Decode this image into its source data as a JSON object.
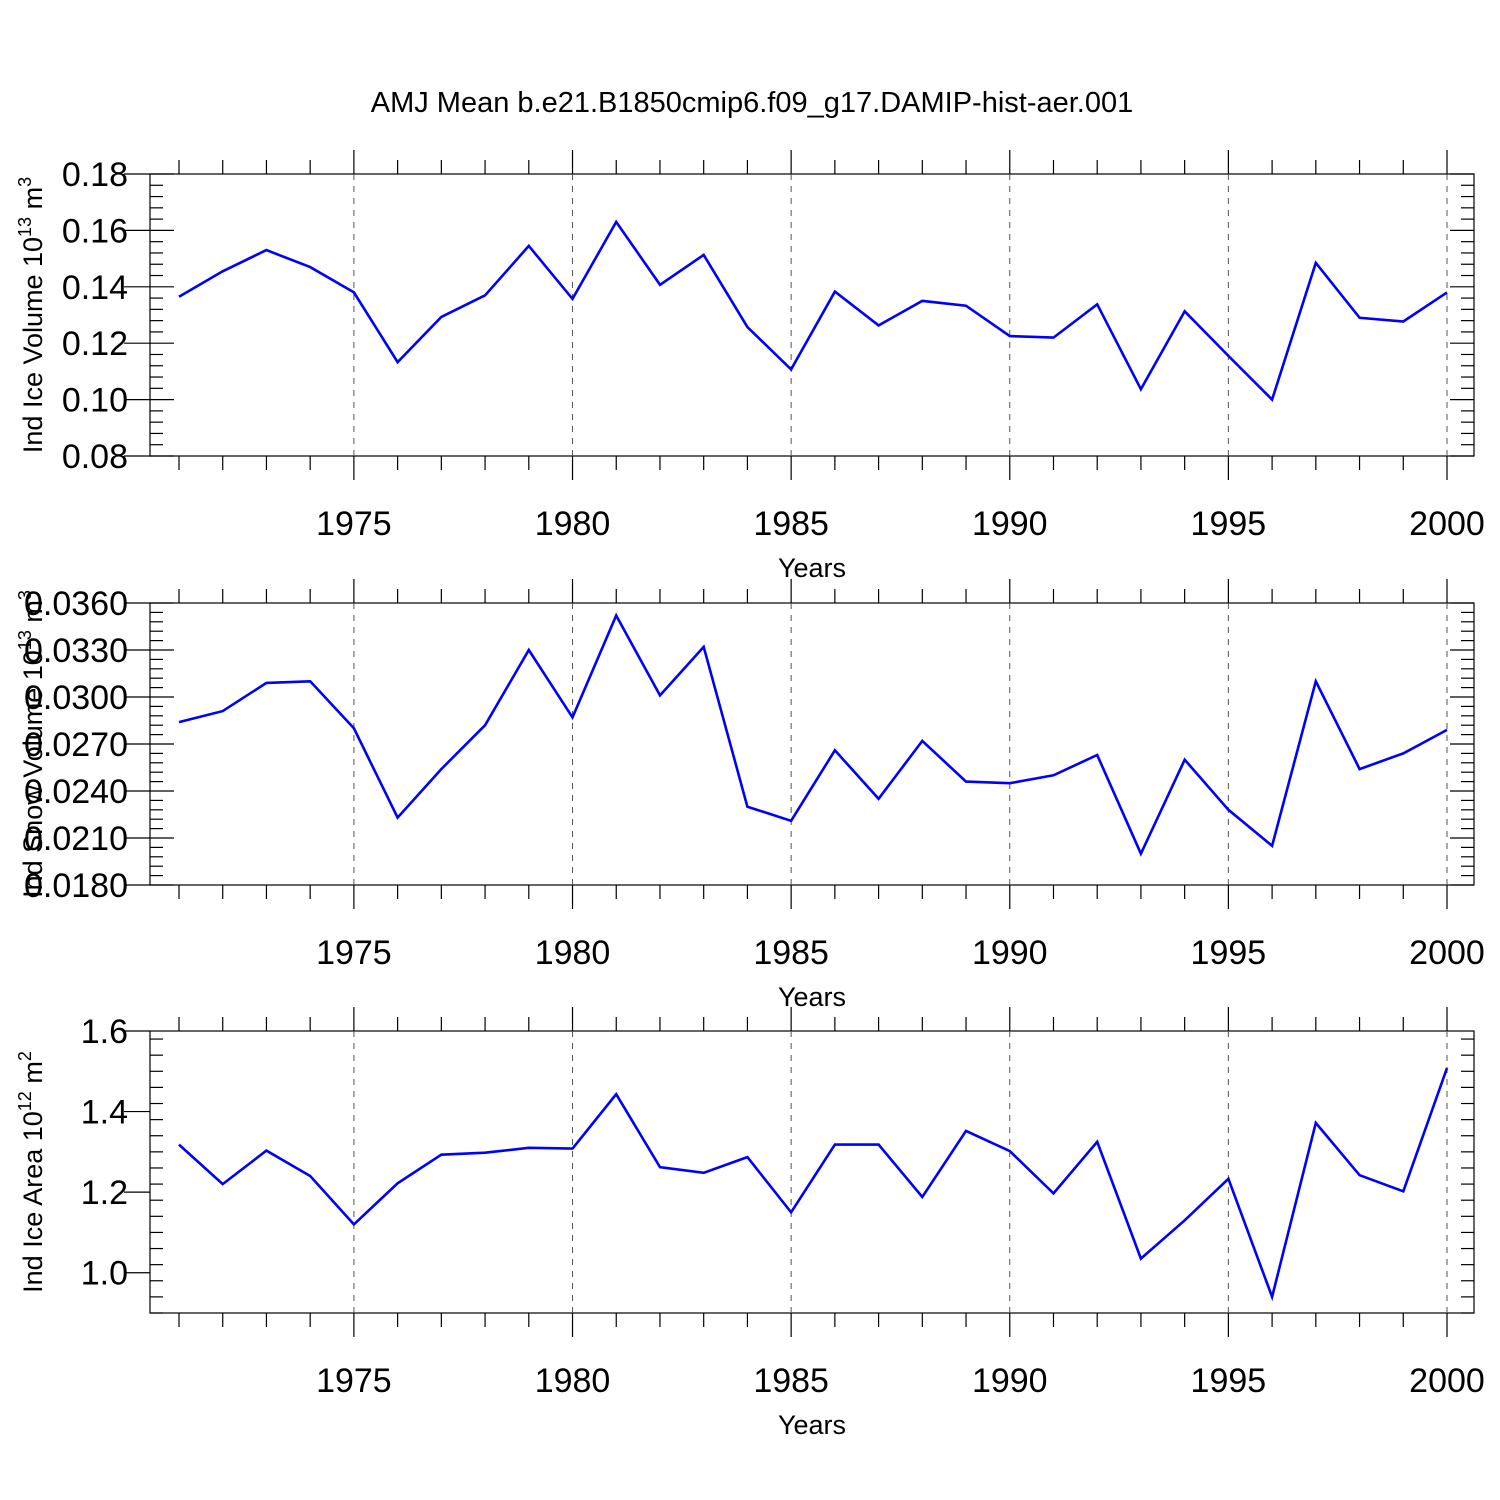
{
  "title": "AMJ Mean b.e21.B1850cmip6.f09_g17.DAMIP-hist-aer.001",
  "line_color": "#0000ff",
  "chart_data": [
    {
      "type": "line",
      "id": "ice-volume",
      "ylabel": "Ind Ice Volume 10",
      "ylabel_exp": "13",
      "ylabel_unit": " m",
      "ylabel_unit_exp": "3",
      "xlabel": "Years",
      "xlim": [
        1971,
        2000
      ],
      "ylim": [
        0.08,
        0.18
      ],
      "yticks": [
        0.08,
        0.1,
        0.12,
        0.14,
        0.16,
        0.18
      ],
      "ytick_labels": [
        "0.08",
        "0.10",
        "0.12",
        "0.14",
        "0.16",
        "0.18"
      ],
      "xticks": [
        1975,
        1980,
        1985,
        1990,
        1995,
        2000
      ],
      "xtick_labels": [
        "1975",
        "1980",
        "1985",
        "1990",
        "1995",
        "2000"
      ],
      "x": [
        1971,
        1972,
        1973,
        1974,
        1975,
        1976,
        1977,
        1978,
        1979,
        1980,
        1981,
        1982,
        1983,
        1984,
        1985,
        1986,
        1987,
        1988,
        1989,
        1990,
        1991,
        1992,
        1993,
        1994,
        1995,
        1996,
        1997,
        1998,
        1999,
        2000
      ],
      "values": [
        0.1365,
        0.1455,
        0.153,
        0.147,
        0.138,
        0.1133,
        0.1293,
        0.137,
        0.1545,
        0.1357,
        0.163,
        0.1407,
        0.1513,
        0.1257,
        0.1107,
        0.1383,
        0.1263,
        0.135,
        0.1333,
        0.1225,
        0.122,
        0.1338,
        0.1037,
        0.1313,
        0.1155,
        0.1,
        0.1485,
        0.129,
        0.1277,
        0.138
      ]
    },
    {
      "type": "line",
      "id": "snow-volume",
      "ylabel": "Ind Snow Volume 10",
      "ylabel_exp": "13",
      "ylabel_unit": " m",
      "ylabel_unit_exp": "3",
      "xlabel": "Years",
      "xlim": [
        1971,
        2000
      ],
      "ylim": [
        0.018,
        0.036
      ],
      "yticks": [
        0.018,
        0.021,
        0.024,
        0.027,
        0.03,
        0.033,
        0.036
      ],
      "ytick_labels": [
        "0.0180",
        "0.0210",
        "0.0240",
        "0.0270",
        "0.0300",
        "0.0330",
        "0.0360"
      ],
      "xticks": [
        1975,
        1980,
        1985,
        1990,
        1995,
        2000
      ],
      "xtick_labels": [
        "1975",
        "1980",
        "1985",
        "1990",
        "1995",
        "2000"
      ],
      "x": [
        1971,
        1972,
        1973,
        1974,
        1975,
        1976,
        1977,
        1978,
        1979,
        1980,
        1981,
        1982,
        1983,
        1984,
        1985,
        1986,
        1987,
        1988,
        1989,
        1990,
        1991,
        1992,
        1993,
        1994,
        1995,
        1996,
        1997,
        1998,
        1999,
        2000
      ],
      "values": [
        0.0284,
        0.0291,
        0.0309,
        0.031,
        0.028,
        0.0223,
        0.0254,
        0.0282,
        0.033,
        0.0287,
        0.0352,
        0.0301,
        0.0332,
        0.023,
        0.0221,
        0.0266,
        0.0235,
        0.0272,
        0.0246,
        0.0245,
        0.025,
        0.0263,
        0.02,
        0.026,
        0.0228,
        0.0205,
        0.031,
        0.0254,
        0.0264,
        0.0279
      ]
    },
    {
      "type": "line",
      "id": "ice-area",
      "ylabel": "Ind Ice Area 10",
      "ylabel_exp": "12",
      "ylabel_unit": " m",
      "ylabel_unit_exp": "2",
      "xlabel": "Years",
      "xlim": [
        1971,
        2000
      ],
      "ylim": [
        0.9,
        1.6
      ],
      "yticks": [
        1.0,
        1.2,
        1.4,
        1.6
      ],
      "ytick_labels": [
        "1.0",
        "1.2",
        "1.4",
        "1.6"
      ],
      "xticks": [
        1975,
        1980,
        1985,
        1990,
        1995,
        2000
      ],
      "xtick_labels": [
        "1975",
        "1980",
        "1985",
        "1990",
        "1995",
        "2000"
      ],
      "x": [
        1971,
        1972,
        1973,
        1974,
        1975,
        1976,
        1977,
        1978,
        1979,
        1980,
        1981,
        1982,
        1983,
        1984,
        1985,
        1986,
        1987,
        1988,
        1989,
        1990,
        1991,
        1992,
        1993,
        1994,
        1995,
        1996,
        1997,
        1998,
        1999,
        2000
      ],
      "values": [
        1.318,
        1.22,
        1.303,
        1.24,
        1.12,
        1.222,
        1.293,
        1.298,
        1.31,
        1.308,
        1.443,
        1.262,
        1.248,
        1.287,
        1.15,
        1.318,
        1.318,
        1.188,
        1.352,
        1.302,
        1.197,
        1.325,
        1.035,
        1.13,
        1.233,
        0.94,
        1.372,
        1.242,
        1.202,
        1.508
      ]
    }
  ]
}
